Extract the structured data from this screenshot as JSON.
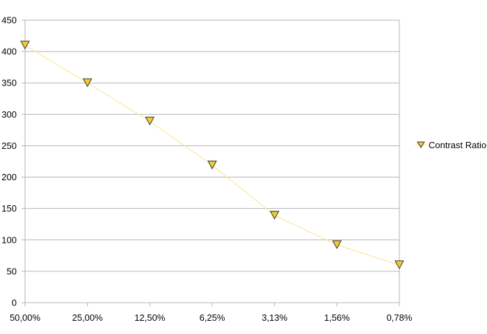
{
  "chart_data": {
    "type": "line",
    "categories": [
      "50,00%",
      "25,00%",
      "12,50%",
      "6,25%",
      "3,13%",
      "1,56%",
      "0,78%"
    ],
    "series": [
      {
        "name": "Contrast Ratio",
        "values": [
          410,
          350,
          289,
          219,
          139,
          92,
          60
        ],
        "color": "#f2cc30",
        "line_color": "#fae8a0",
        "marker": "triangle-down"
      }
    ],
    "ylim": [
      0,
      450
    ],
    "yticks": [
      0,
      50,
      100,
      150,
      200,
      250,
      300,
      350,
      400,
      450
    ],
    "grid": true,
    "legend": "right"
  }
}
